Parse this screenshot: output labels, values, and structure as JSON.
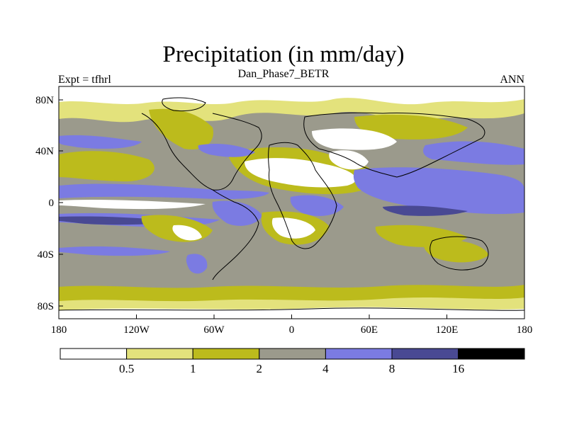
{
  "header": {
    "title": "Precipitation (in mm/day)",
    "subtitle": "Dan_Phase7_BETR",
    "left_label": "Expt = tfhrl",
    "right_label": "ANN"
  },
  "axes": {
    "x_ticks": [
      "180",
      "120W",
      "60W",
      "0",
      "60E",
      "120E",
      "180"
    ],
    "y_ticks": [
      "80N",
      "40N",
      "0",
      "40S",
      "80S"
    ]
  },
  "colorbar": {
    "levels": [
      "0.5",
      "1",
      "2",
      "4",
      "8",
      "16"
    ],
    "colors": [
      "#ffffff",
      "#e3e27c",
      "#bcbb1c",
      "#9b9a8c",
      "#7b7be2",
      "#494993",
      "#000000"
    ]
  },
  "regions": {
    "base": "#9b9a8c",
    "polar": "#e3e27c",
    "itcz": "#7b7be2",
    "heavy": "#494993",
    "moderate": "#bcbb1c",
    "desert": "#ffffff",
    "coastline": "#000000"
  }
}
